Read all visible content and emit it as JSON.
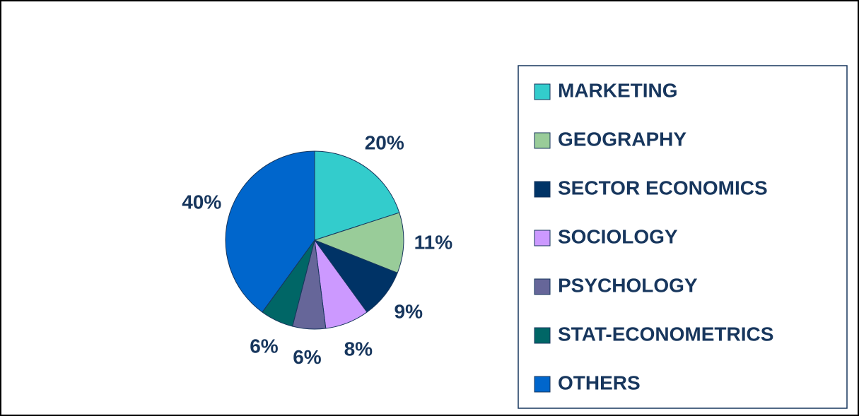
{
  "chart_data": {
    "type": "pie",
    "categories": [
      "MARKETING",
      "GEOGRAPHY",
      "SECTOR ECONOMICS",
      "SOCIOLOGY",
      "PSYCHOLOGY",
      "STAT-ECONOMETRICS",
      "OTHERS"
    ],
    "values": [
      20,
      11,
      9,
      8,
      6,
      6,
      40
    ],
    "value_labels": [
      "20%",
      "11%",
      "9%",
      "8%",
      "6%",
      "6%",
      "40%"
    ],
    "colors": [
      "#33CCCC",
      "#99CC99",
      "#003366",
      "#CC99FF",
      "#666699",
      "#006666",
      "#0066CC"
    ],
    "legend": "right"
  }
}
